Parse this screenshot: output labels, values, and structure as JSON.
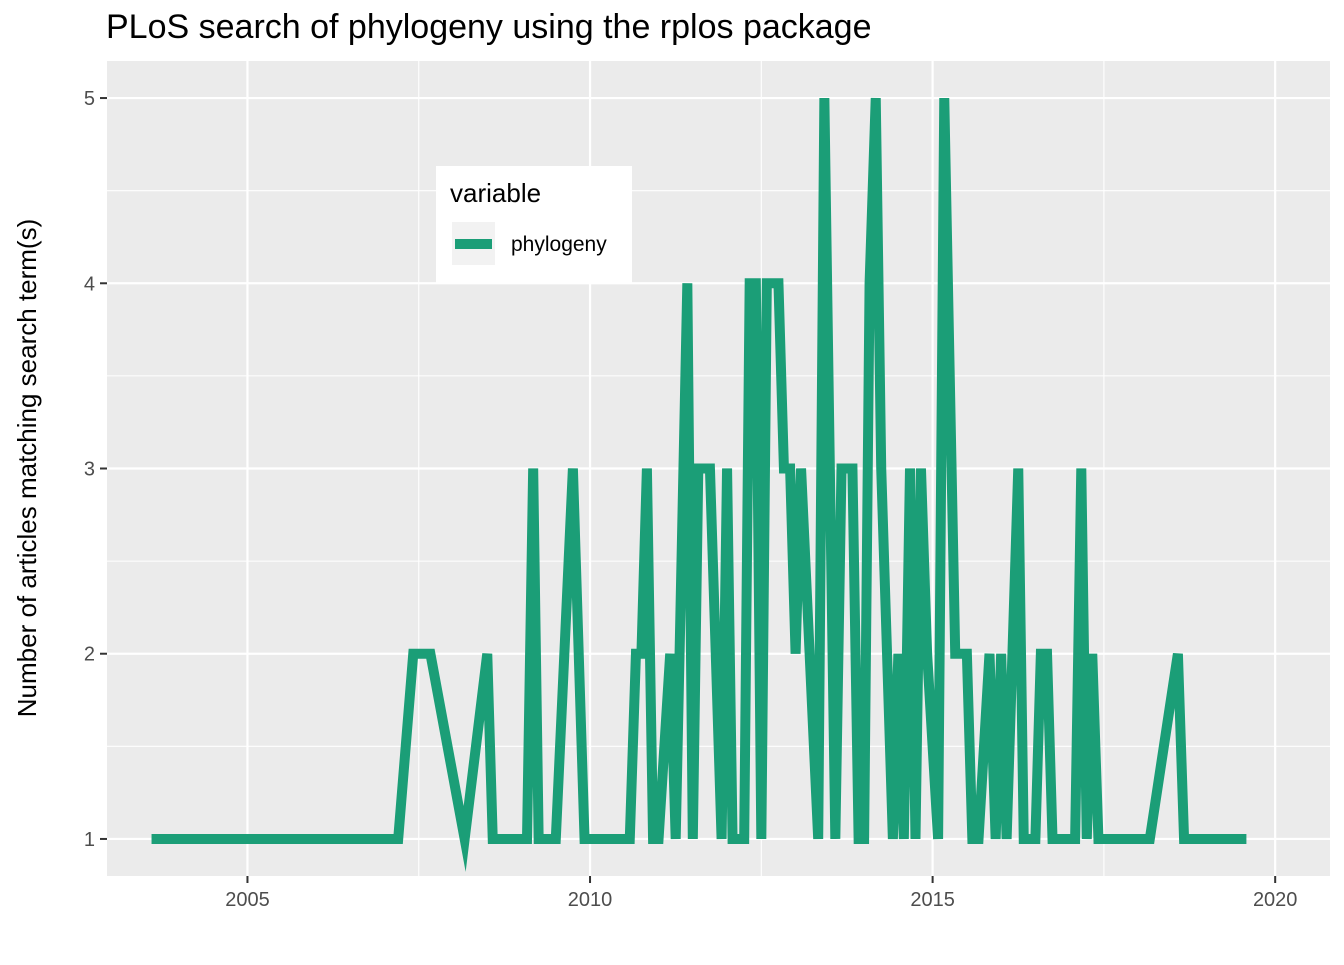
{
  "chart_data": {
    "type": "line",
    "title": "PLoS search of phylogeny using the rplos package",
    "xlabel": "",
    "ylabel": "Number of articles matching search term(s)",
    "xlim": [
      2002.95,
      2020.8
    ],
    "ylim": [
      0.8,
      5.2
    ],
    "x_ticks": [
      2005,
      2010,
      2015,
      2020
    ],
    "x_tick_labels": [
      "2005",
      "2010",
      "2015",
      "2020"
    ],
    "y_ticks": [
      1,
      2,
      3,
      4,
      5
    ],
    "y_tick_labels": [
      "1",
      "2",
      "3",
      "4",
      "5"
    ],
    "grid": true,
    "legend": {
      "title": "variable",
      "placement": "top-left inside panel",
      "entries": [
        "phylogeny"
      ]
    },
    "series": [
      {
        "name": "phylogeny",
        "color": "#1b9e77",
        "points": [
          [
            2003.6,
            1
          ],
          [
            2004.5,
            1
          ],
          [
            2005.5,
            1
          ],
          [
            2006.5,
            1
          ],
          [
            2007.2,
            1
          ],
          [
            2007.42,
            2
          ],
          [
            2007.67,
            2
          ],
          [
            2008.17,
            1
          ],
          [
            2008.5,
            2
          ],
          [
            2008.58,
            1
          ],
          [
            2009.0,
            1
          ],
          [
            2009.08,
            1
          ],
          [
            2009.17,
            3
          ],
          [
            2009.25,
            1
          ],
          [
            2009.5,
            1
          ],
          [
            2009.75,
            3
          ],
          [
            2009.92,
            1
          ],
          [
            2010.5,
            1
          ],
          [
            2010.58,
            1
          ],
          [
            2010.67,
            2
          ],
          [
            2010.75,
            2
          ],
          [
            2010.83,
            3
          ],
          [
            2010.92,
            1
          ],
          [
            2011.0,
            1
          ],
          [
            2011.17,
            2
          ],
          [
            2011.25,
            1
          ],
          [
            2011.42,
            4
          ],
          [
            2011.5,
            1
          ],
          [
            2011.58,
            3
          ],
          [
            2011.67,
            3
          ],
          [
            2011.75,
            3
          ],
          [
            2011.92,
            1
          ],
          [
            2012.0,
            3
          ],
          [
            2012.08,
            1
          ],
          [
            2012.25,
            1
          ],
          [
            2012.33,
            4
          ],
          [
            2012.42,
            4
          ],
          [
            2012.5,
            1
          ],
          [
            2012.58,
            4
          ],
          [
            2012.67,
            4
          ],
          [
            2012.75,
            4
          ],
          [
            2012.83,
            3
          ],
          [
            2012.92,
            3
          ],
          [
            2013.0,
            2
          ],
          [
            2013.08,
            3
          ],
          [
            2013.33,
            1
          ],
          [
            2013.42,
            5
          ],
          [
            2013.58,
            1
          ],
          [
            2013.67,
            3
          ],
          [
            2013.75,
            3
          ],
          [
            2013.83,
            3
          ],
          [
            2013.92,
            1
          ],
          [
            2014.0,
            1
          ],
          [
            2014.08,
            4
          ],
          [
            2014.17,
            5
          ],
          [
            2014.25,
            3
          ],
          [
            2014.42,
            1
          ],
          [
            2014.5,
            2
          ],
          [
            2014.58,
            1
          ],
          [
            2014.67,
            3
          ],
          [
            2014.75,
            1
          ],
          [
            2014.83,
            3
          ],
          [
            2014.92,
            2
          ],
          [
            2015.08,
            1
          ],
          [
            2015.17,
            5
          ],
          [
            2015.33,
            2
          ],
          [
            2015.42,
            2
          ],
          [
            2015.5,
            2
          ],
          [
            2015.58,
            1
          ],
          [
            2015.67,
            1
          ],
          [
            2015.83,
            2
          ],
          [
            2015.92,
            1
          ],
          [
            2016.0,
            2
          ],
          [
            2016.08,
            1
          ],
          [
            2016.25,
            3
          ],
          [
            2016.33,
            1
          ],
          [
            2016.42,
            1
          ],
          [
            2016.5,
            1
          ],
          [
            2016.58,
            2
          ],
          [
            2016.67,
            2
          ],
          [
            2016.75,
            1
          ],
          [
            2016.83,
            1
          ],
          [
            2017.0,
            1
          ],
          [
            2017.08,
            1
          ],
          [
            2017.17,
            3
          ],
          [
            2017.25,
            1
          ],
          [
            2017.33,
            2
          ],
          [
            2017.42,
            1
          ],
          [
            2017.58,
            1
          ],
          [
            2018.17,
            1
          ],
          [
            2018.58,
            2
          ],
          [
            2018.67,
            1
          ],
          [
            2019.58,
            1
          ]
        ]
      }
    ]
  }
}
